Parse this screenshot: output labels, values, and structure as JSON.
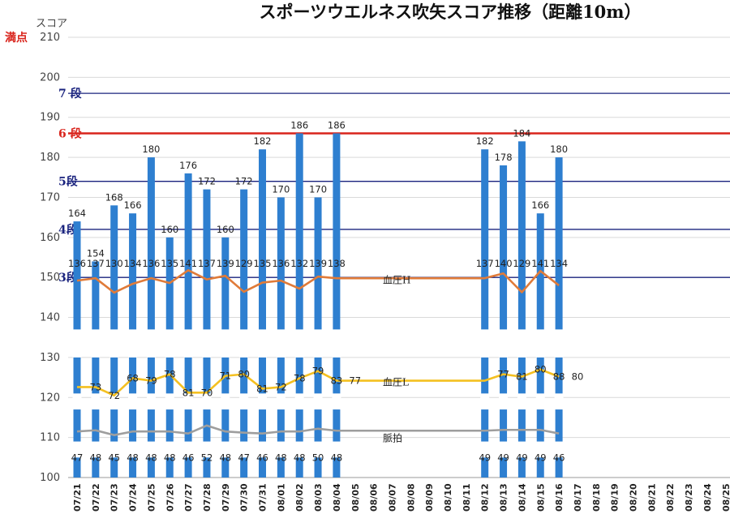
{
  "title": "スポーツウエルネス吹矢スコア推移（距離10m）",
  "colors": {
    "bar": "#2e7fd0",
    "pressure_high": "#e07b39",
    "pressure_low": "#f4c021",
    "pulse": "#9e9e9e",
    "max_line": "#d9241c",
    "dan6_line": "#d9241c",
    "dan_line": "#1a237e"
  },
  "chart_data": {
    "type": "bar",
    "ylabel": "スコア",
    "ylim": [
      100,
      210
    ],
    "yticks": [
      100,
      110,
      120,
      130,
      140,
      150,
      160,
      170,
      180,
      190,
      200,
      210
    ],
    "categories": [
      "07/21",
      "07/22",
      "07/23",
      "07/24",
      "07/25",
      "07/26",
      "07/27",
      "07/28",
      "07/29",
      "07/30",
      "07/31",
      "08/01",
      "08/02",
      "08/03",
      "08/04",
      "08/05",
      "08/06",
      "08/07",
      "08/08",
      "08/09",
      "08/10",
      "08/11",
      "08/12",
      "08/13",
      "08/14",
      "08/15",
      "08/16",
      "08/17",
      "08/18",
      "08/19",
      "08/20",
      "08/21",
      "08/22",
      "08/23",
      "08/24",
      "08/25"
    ],
    "series": [
      {
        "name": "score",
        "values": [
          164,
          154,
          168,
          166,
          180,
          160,
          176,
          172,
          160,
          172,
          182,
          170,
          186,
          170,
          186,
          null,
          null,
          null,
          null,
          null,
          null,
          null,
          182,
          178,
          184,
          166,
          180,
          null,
          null,
          null,
          null,
          null,
          null,
          null,
          null,
          null
        ]
      },
      {
        "name": "血圧H",
        "values": [
          136,
          137,
          130,
          134,
          136,
          135,
          141,
          137,
          139,
          129,
          135,
          136,
          132,
          139,
          138,
          null,
          null,
          null,
          null,
          null,
          null,
          null,
          137,
          140,
          129,
          141,
          134,
          null,
          null,
          null,
          null,
          null,
          null,
          null,
          null,
          null
        ]
      },
      {
        "name": "血圧L",
        "values": [
          null,
          73,
          72,
          68,
          79,
          78,
          81,
          70,
          71,
          80,
          81,
          72,
          78,
          79,
          83,
          77,
          null,
          null,
          null,
          null,
          null,
          null,
          null,
          77,
          81,
          80,
          88,
          80,
          null,
          null,
          null,
          null,
          null,
          null,
          null,
          null
        ]
      },
      {
        "name": "脈拍",
        "values": [
          47,
          48,
          45,
          48,
          48,
          48,
          46,
          52,
          48,
          47,
          46,
          48,
          48,
          50,
          48,
          null,
          null,
          null,
          null,
          null,
          null,
          null,
          49,
          49,
          49,
          49,
          46,
          null,
          null,
          null,
          null,
          null,
          null,
          null,
          null,
          null
        ]
      }
    ],
    "reference_lines": [
      {
        "label": "満点",
        "value": 210,
        "color": "#d9241c"
      },
      {
        "label": "7 段",
        "value": 196,
        "color": "#1a237e"
      },
      {
        "label": "6 段",
        "value": 186,
        "color": "#d9241c"
      },
      {
        "label": "5段",
        "value": 174,
        "color": "#1a237e"
      },
      {
        "label": "4段",
        "value": 162,
        "color": "#1a237e"
      },
      {
        "label": "3段",
        "value": 150,
        "color": "#1a237e"
      }
    ],
    "line_plot": {
      "ylim": [
        40,
        160
      ],
      "pressure_high": [
        149.2,
        149.8,
        146.2,
        148.4,
        149.8,
        148.6,
        151.8,
        149.5,
        150.4,
        146.4,
        148.7,
        149.2,
        147.2,
        150.2,
        149.8,
        149.8,
        149.8,
        149.8,
        149.8,
        149.8,
        149.8,
        149.8,
        149.8,
        151.0,
        146.3,
        151.6,
        148.0
      ],
      "pressure_low": [
        122.6,
        122.6,
        120.5,
        124.8,
        124.2,
        125.8,
        121.2,
        121.2,
        125.4,
        125.8,
        122.2,
        122.6,
        124.8,
        126.6,
        124.2,
        124.2,
        124.2,
        124.2,
        124.2,
        124.2,
        124.2,
        124.2,
        124.2,
        125.8,
        125.2,
        127.0,
        125.2
      ],
      "pulse": [
        111.5,
        111.8,
        110.6,
        111.5,
        111.5,
        111.5,
        111.0,
        113.0,
        111.5,
        111.2,
        111.0,
        111.5,
        111.5,
        112.2,
        111.7,
        111.7,
        111.7,
        111.7,
        111.7,
        111.7,
        111.7,
        111.7,
        111.7,
        111.9,
        111.9,
        111.9,
        111.0
      ]
    }
  }
}
